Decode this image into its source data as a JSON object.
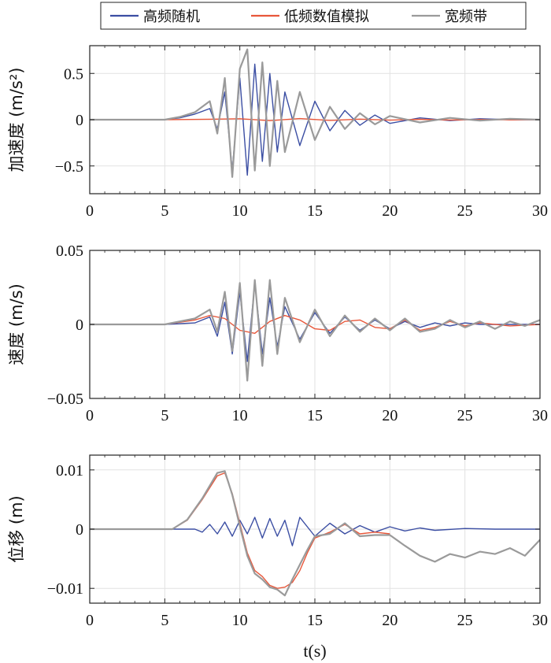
{
  "legend": {
    "entries": [
      {
        "label": "高频随机",
        "color": "#3b4ea3"
      },
      {
        "label": "低频数值模拟",
        "color": "#e8573a"
      },
      {
        "label": "宽频带",
        "color": "#9a9a9a"
      }
    ],
    "placement": "top-center"
  },
  "chart_data": [
    {
      "type": "line",
      "ylabel": "加速度 (m/s²)",
      "xlabel": "",
      "xlim": [
        0,
        30
      ],
      "ylim": [
        -0.8,
        0.8
      ],
      "xticks": [
        "0",
        "5",
        "10",
        "15",
        "20",
        "25",
        "30"
      ],
      "yticks": [
        {
          "value": 0.5,
          "label": "0.5"
        },
        {
          "value": 0,
          "label": "0"
        },
        {
          "value": -0.5,
          "label": "−0.5"
        }
      ],
      "grid": true,
      "series": [
        {
          "name": "高频随机",
          "color": "#3b4ea3",
          "x": [
            0,
            5,
            6,
            7,
            8,
            8.5,
            9,
            9.5,
            10,
            10.5,
            11,
            11.5,
            12,
            12.5,
            13,
            14,
            15,
            16,
            17,
            18,
            19,
            20,
            22,
            24,
            26,
            28,
            30
          ],
          "y": [
            0,
            0,
            0.02,
            0.06,
            0.12,
            -0.1,
            0.3,
            -0.55,
            0.45,
            -0.6,
            0.6,
            -0.45,
            0.5,
            -0.35,
            0.3,
            -0.28,
            0.2,
            -0.12,
            0.1,
            -0.06,
            0.05,
            -0.04,
            0.02,
            -0.01,
            0.01,
            0,
            0
          ]
        },
        {
          "name": "低频数值模拟",
          "color": "#e8573a",
          "x": [
            0,
            5,
            8,
            10,
            12,
            14,
            16,
            18,
            20,
            22,
            24,
            26,
            28,
            30
          ],
          "y": [
            0,
            0,
            0.005,
            0.01,
            -0.01,
            0.012,
            -0.008,
            0.006,
            -0.005,
            0.004,
            -0.003,
            0.002,
            -0.002,
            0
          ]
        },
        {
          "name": "宽频带",
          "color": "#9a9a9a",
          "x": [
            0,
            5,
            6,
            7,
            8,
            8.5,
            9,
            9.5,
            10,
            10.5,
            11,
            11.5,
            12,
            12.5,
            13,
            14,
            15,
            16,
            17,
            18,
            19,
            20,
            22,
            24,
            26,
            28,
            30
          ],
          "y": [
            0,
            0,
            0.03,
            0.08,
            0.2,
            -0.15,
            0.45,
            -0.62,
            0.55,
            0.76,
            -0.55,
            0.62,
            -0.5,
            0.42,
            -0.35,
            0.3,
            -0.22,
            0.14,
            -0.1,
            0.07,
            -0.05,
            0.04,
            -0.03,
            0.02,
            -0.01,
            0.01,
            0
          ]
        }
      ]
    },
    {
      "type": "line",
      "ylabel": "速度 (m/s)",
      "xlabel": "",
      "xlim": [
        0,
        30
      ],
      "ylim": [
        -0.05,
        0.05
      ],
      "xticks": [
        "0",
        "5",
        "10",
        "15",
        "20",
        "25",
        "30"
      ],
      "yticks": [
        {
          "value": 0.05,
          "label": "0.05"
        },
        {
          "value": 0,
          "label": "0"
        },
        {
          "value": -0.05,
          "label": "−0.05"
        }
      ],
      "grid": true,
      "series": [
        {
          "name": "高频随机",
          "color": "#3b4ea3",
          "x": [
            0,
            5,
            7,
            8,
            8.5,
            9,
            9.5,
            10,
            10.5,
            11,
            11.5,
            12,
            12.5,
            13,
            14,
            15,
            16,
            17,
            18,
            19,
            20,
            21,
            22,
            23,
            24,
            25,
            26,
            28,
            30
          ],
          "y": [
            0,
            0,
            0.001,
            0.005,
            -0.008,
            0.015,
            -0.02,
            0.022,
            -0.025,
            0.028,
            -0.02,
            0.018,
            -0.015,
            0.012,
            -0.01,
            0.008,
            -0.006,
            0.005,
            -0.004,
            0.003,
            -0.003,
            0.002,
            -0.002,
            0.001,
            -0.001,
            0.001,
            0,
            0,
            0
          ]
        },
        {
          "name": "低频数值模拟",
          "color": "#e8573a",
          "x": [
            0,
            5,
            7,
            8,
            9,
            10,
            11,
            12,
            13,
            14,
            15,
            16,
            17,
            18,
            19,
            20,
            21,
            22,
            23,
            24,
            25,
            26,
            28,
            30
          ],
          "y": [
            0,
            0,
            0.003,
            0.006,
            0.004,
            -0.004,
            -0.006,
            0.002,
            0.006,
            0.003,
            -0.003,
            -0.004,
            0.002,
            0.003,
            -0.002,
            -0.003,
            0.003,
            -0.004,
            -0.002,
            0.002,
            -0.001,
            0.001,
            -0.001,
            0
          ]
        },
        {
          "name": "宽频带",
          "color": "#9a9a9a",
          "x": [
            0,
            5,
            7,
            8,
            8.5,
            9,
            9.5,
            10,
            10.5,
            11,
            11.5,
            12,
            12.5,
            13,
            14,
            15,
            16,
            17,
            18,
            19,
            20,
            21,
            22,
            23,
            24,
            25,
            26,
            27,
            28,
            29,
            30
          ],
          "y": [
            0,
            0,
            0.004,
            0.01,
            -0.005,
            0.022,
            -0.018,
            0.028,
            -0.038,
            0.03,
            -0.028,
            0.03,
            -0.02,
            0.018,
            -0.012,
            0.01,
            -0.008,
            0.006,
            -0.005,
            0.004,
            -0.004,
            0.004,
            -0.005,
            -0.003,
            0.003,
            -0.002,
            0.002,
            -0.003,
            0.002,
            -0.001,
            0.003
          ]
        }
      ]
    },
    {
      "type": "line",
      "ylabel": "位移 (m)",
      "xlabel": "t(s)",
      "xlim": [
        0,
        30
      ],
      "ylim": [
        -0.0125,
        0.0125
      ],
      "xticks": [
        "0",
        "5",
        "10",
        "15",
        "20",
        "25",
        "30"
      ],
      "yticks": [
        {
          "value": 0.01,
          "label": "0.01"
        },
        {
          "value": 0,
          "label": "0"
        },
        {
          "value": -0.01,
          "label": "−0.01"
        }
      ],
      "grid": true,
      "series": [
        {
          "name": "高频随机",
          "color": "#3b4ea3",
          "x": [
            0,
            7,
            7.5,
            8,
            8.5,
            9,
            9.5,
            10,
            10.5,
            11,
            11.5,
            12,
            12.5,
            13,
            13.5,
            14,
            15,
            16,
            17,
            18,
            19,
            20,
            21,
            22,
            23,
            25,
            27,
            30
          ],
          "y": [
            0,
            0,
            -0.0005,
            0.0008,
            -0.0008,
            0.0012,
            -0.0012,
            0.0015,
            -0.0008,
            0.002,
            -0.0015,
            0.0018,
            -0.0012,
            0.0015,
            -0.0028,
            0.002,
            -0.0012,
            0.001,
            -0.0008,
            0.0006,
            -0.0005,
            0.0004,
            -0.0003,
            0.0002,
            -0.0002,
            0.0001,
            0,
            0
          ]
        },
        {
          "name": "低频数值模拟",
          "color": "#e8573a",
          "x": [
            0,
            5.5,
            6.5,
            7.5,
            8.5,
            9,
            9.5,
            10,
            10.5,
            11,
            11.5,
            12,
            12.5,
            13,
            13.5,
            14,
            14.5,
            15,
            16,
            17,
            18,
            19,
            20
          ],
          "y": [
            0,
            0,
            0.0015,
            0.005,
            0.009,
            0.0095,
            0.006,
            0.001,
            -0.004,
            -0.007,
            -0.008,
            -0.0095,
            -0.01,
            -0.0098,
            -0.009,
            -0.007,
            -0.004,
            -0.0015,
            -0.0005,
            0.0008,
            -0.0008,
            -0.0005,
            -0.0008
          ]
        },
        {
          "name": "宽频带",
          "color": "#9a9a9a",
          "x": [
            0,
            5.5,
            6.5,
            7.5,
            8.5,
            9,
            9.5,
            10,
            10.5,
            11,
            11.5,
            12,
            12.5,
            13,
            13.5,
            14,
            14.5,
            15,
            16,
            17,
            18,
            19,
            20,
            21,
            22,
            23,
            24,
            25,
            26,
            27,
            28,
            29,
            30
          ],
          "y": [
            0,
            0,
            0.0016,
            0.0052,
            0.0095,
            0.0098,
            0.0058,
            0.0005,
            -0.0045,
            -0.0075,
            -0.0085,
            -0.0098,
            -0.0102,
            -0.0112,
            -0.0085,
            -0.006,
            -0.0035,
            -0.0012,
            -0.0008,
            0.001,
            -0.0012,
            -0.001,
            -0.001,
            -0.0028,
            -0.0045,
            -0.0055,
            -0.0042,
            -0.0048,
            -0.0038,
            -0.0042,
            -0.0032,
            -0.0045,
            -0.0018
          ]
        }
      ]
    }
  ]
}
